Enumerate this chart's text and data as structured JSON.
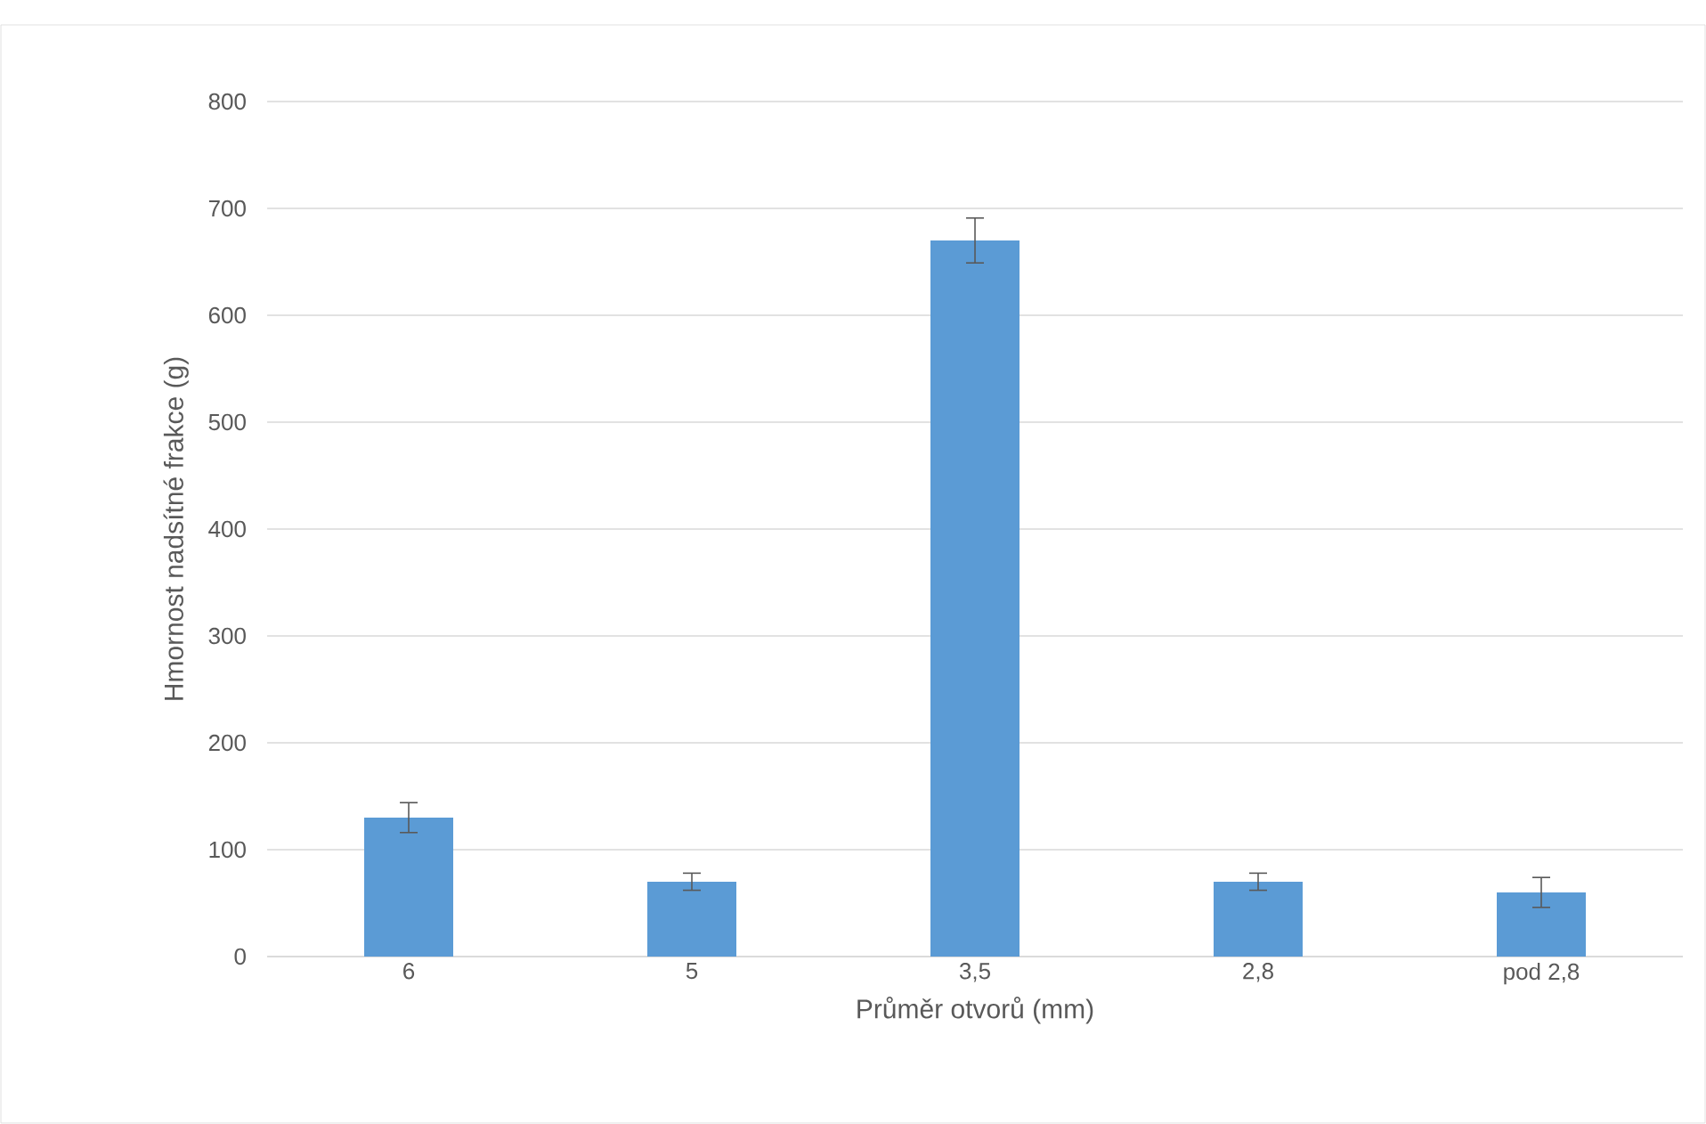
{
  "chart_data": {
    "type": "bar",
    "xlabel": "Průměr otvorů (mm)",
    "ylabel": "Hmornost nadsítné frakce (g)",
    "categories": [
      "6",
      "5",
      "3,5",
      "2,8",
      "pod 2,8"
    ],
    "values": [
      130,
      70,
      670,
      70,
      60
    ],
    "errors": [
      14,
      8,
      21,
      8,
      14
    ],
    "color": "#5b9bd5",
    "ylim": [
      0,
      800
    ],
    "yticks": [
      0,
      100,
      200,
      300,
      400,
      500,
      600,
      700,
      800
    ],
    "grid": "y"
  }
}
